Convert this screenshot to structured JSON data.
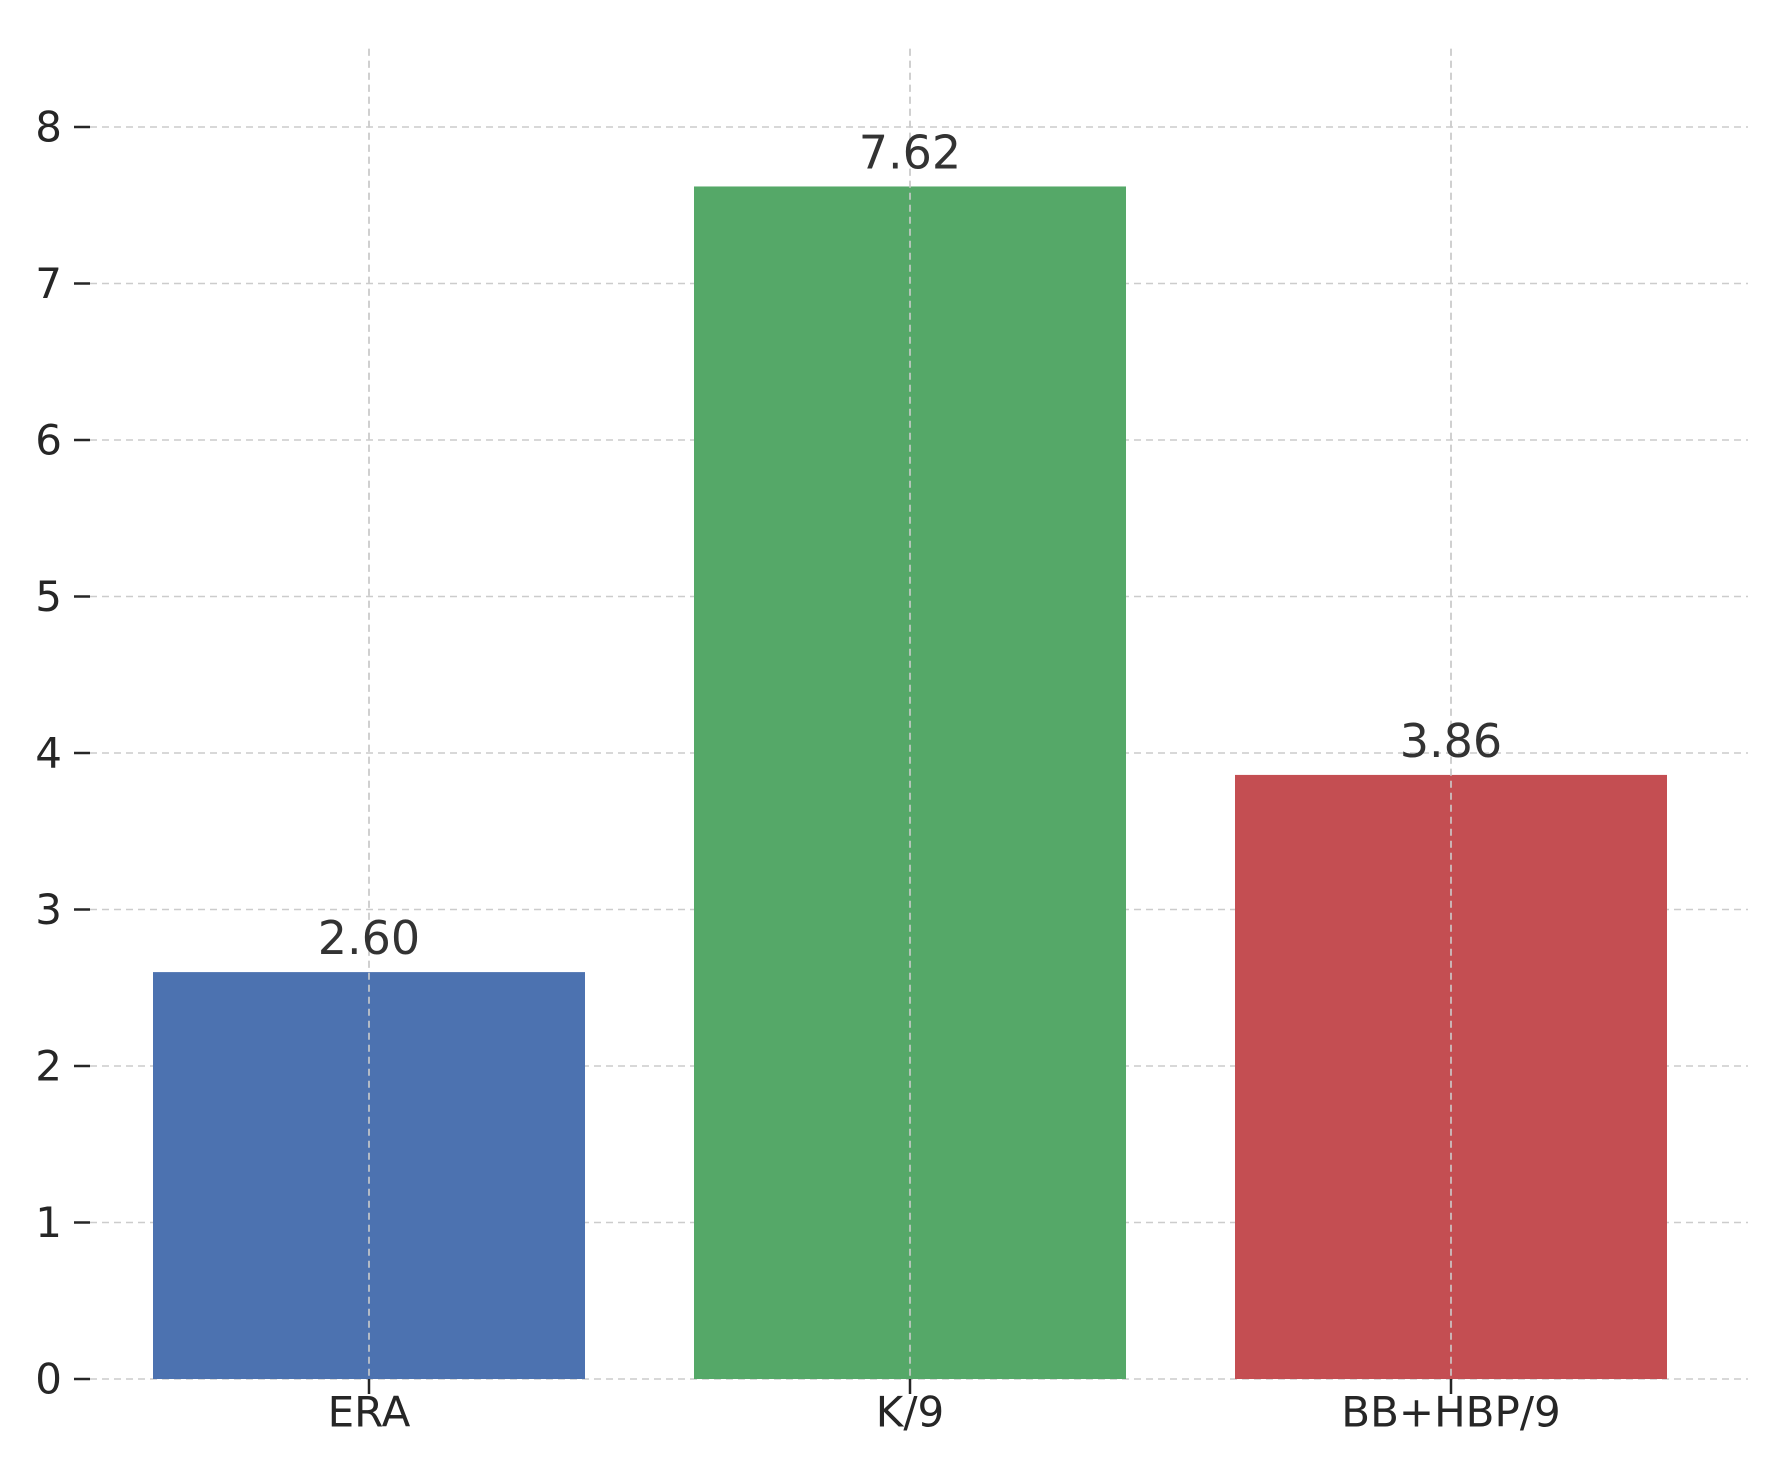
{
  "chart_data": {
    "type": "bar",
    "categories": [
      "ERA",
      "K/9",
      "BB+HBP/9"
    ],
    "values": [
      2.6,
      7.62,
      3.86
    ],
    "value_labels": [
      "2.60",
      "7.62",
      "3.86"
    ],
    "colors": [
      "#4c72b0",
      "#55a868",
      "#c44e52"
    ],
    "title": "",
    "xlabel": "",
    "ylabel": "",
    "ylim": [
      0,
      8.5
    ],
    "yticks": [
      0,
      1,
      2,
      3,
      4,
      5,
      6,
      7,
      8
    ],
    "grid": true,
    "legend": "none"
  }
}
